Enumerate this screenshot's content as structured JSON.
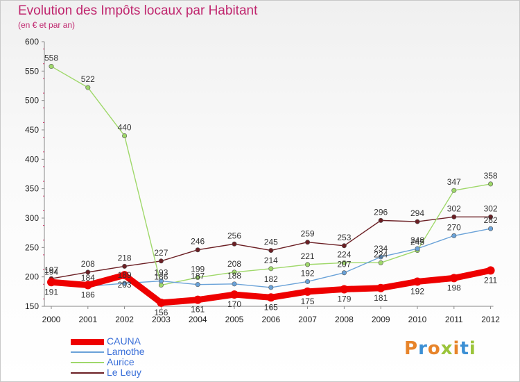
{
  "header": {
    "title": "Evolution des Impôts locaux par Habitant",
    "subtitle": "(en € et par an)"
  },
  "logo": {
    "text": "Proxiti",
    "colors": [
      "#e7842a",
      "#3b8fd4",
      "#e7842a",
      "#9bc43a",
      "#e7842a",
      "#3b8fd4",
      "#9bc43a"
    ]
  },
  "chart_data": {
    "type": "line",
    "title": "Evolution des Impôts locaux par Habitant",
    "subtitle": "(en € et par an)",
    "x": [
      "2000",
      "2001",
      "2002",
      "2003",
      "2004",
      "2005",
      "2006",
      "2007",
      "2008",
      "2009",
      "2010",
      "2011",
      "2012"
    ],
    "ylim": [
      150,
      600
    ],
    "yticks": [
      150,
      200,
      250,
      300,
      350,
      400,
      450,
      500,
      550,
      600
    ],
    "grid": false,
    "legend_position": "bottom-left",
    "series": [
      {
        "name": "CAUNA",
        "color": "#ee0000",
        "values": [
          191,
          186,
          203,
          156,
          161,
          170,
          165,
          175,
          179,
          181,
          192,
          198,
          211
        ],
        "labels": true
      },
      {
        "name": "Lamothe",
        "color": "#6aa2d8",
        "values": [
          194,
          184,
          189,
          193,
          187,
          188,
          182,
          192,
          207,
          234,
          248,
          270,
          282
        ],
        "labels": true
      },
      {
        "name": "Aurice",
        "color": "#9fd86a",
        "values": [
          558,
          522,
          440,
          186,
          199,
          208,
          214,
          221,
          224,
          224,
          245,
          347,
          358
        ],
        "labels": true
      },
      {
        "name": "Le Leuy",
        "color": "#6b1f24",
        "values": [
          197,
          208,
          218,
          227,
          246,
          256,
          245,
          259,
          253,
          296,
          294,
          302,
          302
        ],
        "labels": true
      }
    ]
  }
}
